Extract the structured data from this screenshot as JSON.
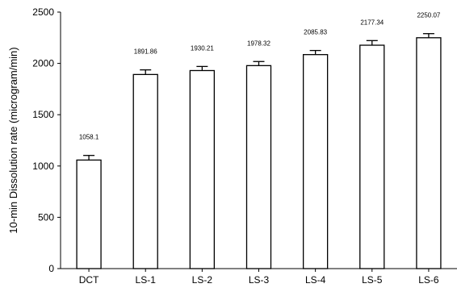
{
  "chart_data": {
    "type": "bar",
    "title": "",
    "xlabel": "",
    "ylabel": "10-min Dissolution rate (microgram/min)",
    "categories": [
      "DCT",
      "LS-1",
      "LS-2",
      "LS-3",
      "LS-4",
      "LS-5",
      "LS-6"
    ],
    "values": [
      1058.1,
      1891.86,
      1930.21,
      1978.32,
      2085.83,
      2177.34,
      2250.07
    ],
    "value_labels": [
      "1058.1",
      "1891.86",
      "1930.21",
      "1978.32",
      "2085.83",
      "2177.34",
      "2250.07"
    ],
    "error_plus": [
      45,
      45,
      40,
      40,
      40,
      45,
      40
    ],
    "ylim": [
      0,
      2500
    ],
    "yticks": [
      0,
      500,
      1000,
      1500,
      2000,
      2500
    ],
    "grid": false,
    "legend": "none",
    "colors": {
      "bar_fill": "#ffffff",
      "bar_stroke": "#000000"
    }
  }
}
